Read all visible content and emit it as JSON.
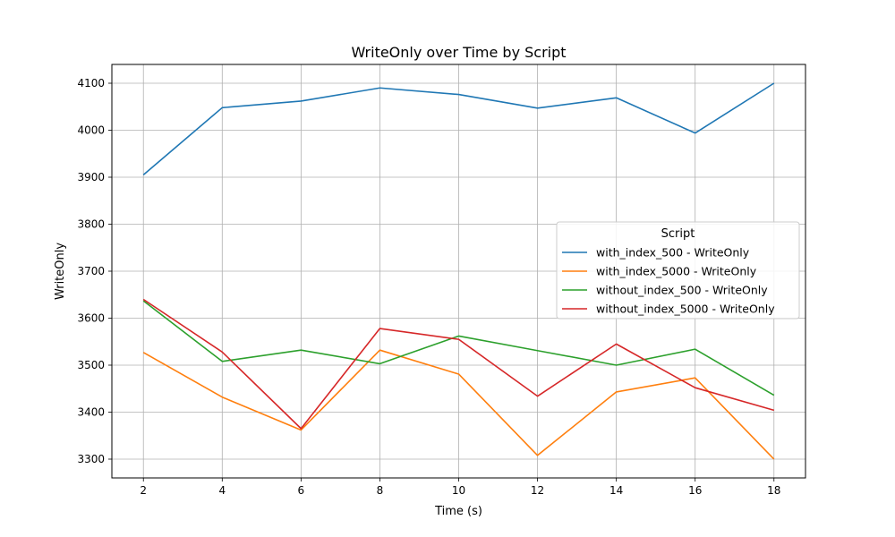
{
  "chart_data": {
    "type": "line",
    "title": "WriteOnly over Time by Script",
    "xlabel": "Time (s)",
    "ylabel": "WriteOnly",
    "x": [
      2,
      4,
      6,
      8,
      10,
      12,
      14,
      16,
      18
    ],
    "xticks": [
      2,
      4,
      6,
      8,
      10,
      12,
      14,
      16,
      18
    ],
    "yticks": [
      3300,
      3400,
      3500,
      3600,
      3700,
      3800,
      3900,
      4000,
      4100
    ],
    "xlim": [
      1.2,
      18.8
    ],
    "ylim": [
      3260,
      4140
    ],
    "grid": true,
    "legend": {
      "title": "Script",
      "placement": "center-right"
    },
    "series": [
      {
        "name": "with_index_500 - WriteOnly",
        "color": "#1f77b4",
        "values": [
          3905,
          4048,
          4062,
          4090,
          4076,
          4047,
          4069,
          3994,
          4100
        ]
      },
      {
        "name": "with_index_5000 - WriteOnly",
        "color": "#ff7f0e",
        "values": [
          3527,
          3432,
          3362,
          3532,
          3481,
          3308,
          3443,
          3473,
          3300
        ]
      },
      {
        "name": "without_index_500 - WriteOnly",
        "color": "#2ca02c",
        "values": [
          3637,
          3508,
          3532,
          3503,
          3562,
          3531,
          3500,
          3534,
          3436
        ]
      },
      {
        "name": "without_index_5000 - WriteOnly",
        "color": "#d62728",
        "values": [
          3640,
          3528,
          3365,
          3578,
          3555,
          3434,
          3545,
          3452,
          3404
        ]
      }
    ]
  }
}
